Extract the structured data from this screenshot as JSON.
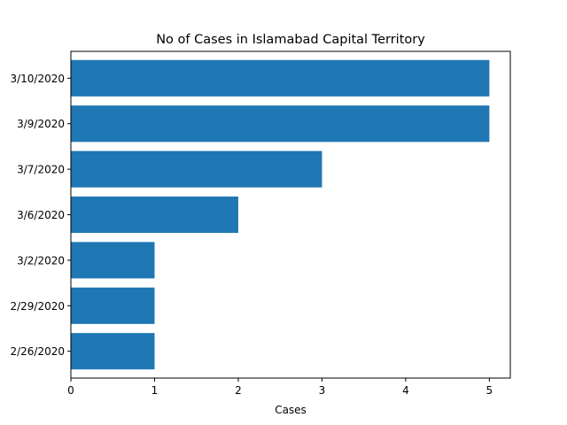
{
  "chart_data": {
    "type": "bar",
    "orientation": "horizontal",
    "title": "No of Cases in Islamabad Capital Territory",
    "xlabel": "Cases",
    "ylabel": "",
    "categories": [
      "2/26/2020",
      "2/29/2020",
      "3/2/2020",
      "3/6/2020",
      "3/7/2020",
      "3/9/2020",
      "3/10/2020"
    ],
    "values": [
      1,
      1,
      1,
      2,
      3,
      5,
      5
    ],
    "xlim": [
      0,
      5.25
    ],
    "xticks": [
      0,
      1,
      2,
      3,
      4,
      5
    ],
    "grid": false,
    "legend": "none",
    "bar_color": "#1f77b4"
  }
}
